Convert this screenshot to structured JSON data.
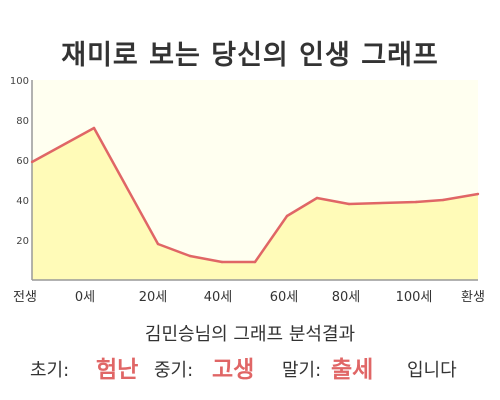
{
  "page_title": "재미로 보는 당신의 인생 그래프",
  "chart_data": {
    "type": "area",
    "x_labels": [
      "전생",
      "0세",
      "20세",
      "40세",
      "60세",
      "80세",
      "100세",
      "환생"
    ],
    "x": [
      "전생",
      "0세",
      "16세",
      "26세",
      "38세",
      "48세",
      "64세",
      "72세",
      "80세",
      "96세",
      "108세",
      "환생"
    ],
    "values": [
      59,
      76,
      18,
      12,
      9,
      9,
      32,
      41,
      38,
      39,
      40,
      43
    ],
    "ylim": [
      0,
      100
    ],
    "y_ticks": [
      20,
      40,
      60,
      80,
      100
    ],
    "grid": false,
    "colors": {
      "line": "#e06666",
      "fill": "#fffbb8",
      "plot_background": "#fffff0",
      "axis": "#999999"
    }
  },
  "summary": {
    "title": "김민승님의 그래프 분석결과",
    "early_label": "초기:",
    "early_value": "험난",
    "middle_label": "중기:",
    "middle_value": "고생",
    "late_label": "말기:",
    "late_value": "출세",
    "ending": "입니다",
    "highlight_color": "#e06666"
  }
}
